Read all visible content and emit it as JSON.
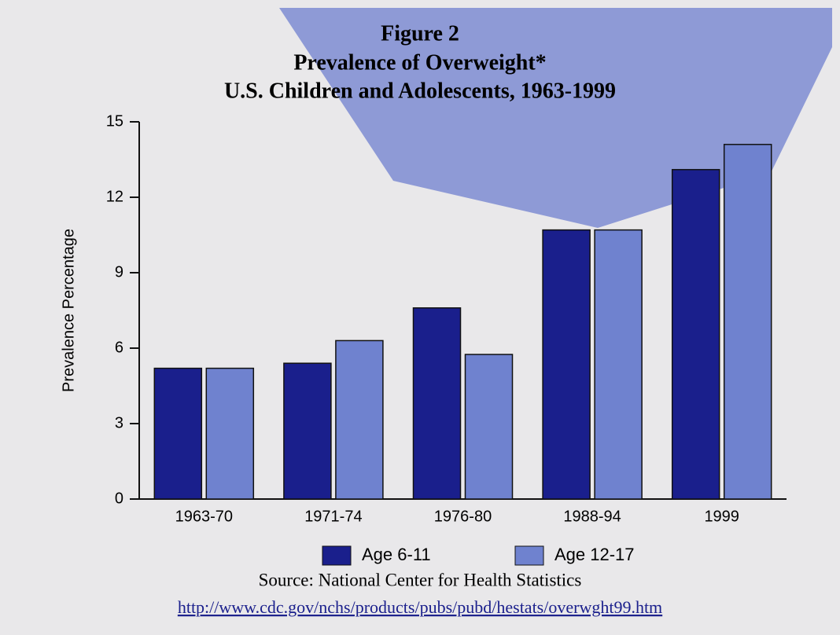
{
  "chart_data": {
    "type": "bar",
    "title_lines": [
      "Figure 2",
      "Prevalence of Overweight*",
      "U.S. Children and Adolescents, 1963-1999"
    ],
    "y_label": "Prevalence Percentage",
    "categories": [
      "1963-70",
      "1971-74",
      "1976-80",
      "1988-94",
      "1999"
    ],
    "series": [
      {
        "name": "Age 6-11",
        "color": "#1a1f8c",
        "values": [
          5.2,
          5.4,
          7.6,
          10.7,
          13.1
        ]
      },
      {
        "name": "Age 12-17",
        "color": "#6f82cf",
        "values": [
          5.2,
          6.3,
          5.75,
          10.7,
          14.1
        ]
      }
    ],
    "ylim": [
      0,
      15
    ],
    "yticks": [
      0,
      3,
      6,
      9,
      12,
      15
    ],
    "source": "Source:  National Center for Health Statistics",
    "url": "http://www.cdc.gov/nchs/products/pubs/pubd/hestats/overwght99.htm"
  }
}
